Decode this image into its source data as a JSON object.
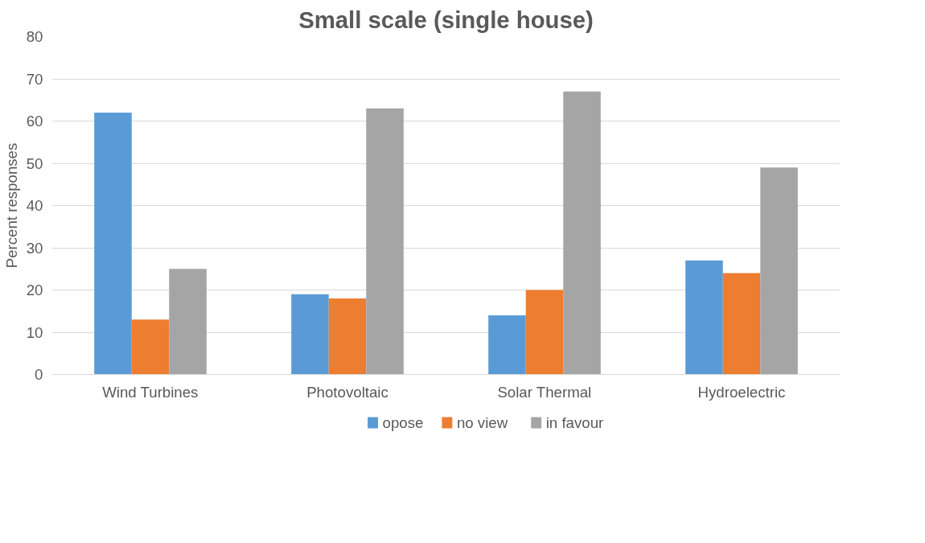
{
  "chart_data": {
    "type": "bar",
    "title": "Small scale (single house)",
    "ylabel": "Percent responses",
    "categories": [
      "Wind Turbines",
      "Photovoltaic",
      "Solar Thermal",
      "Hydroelectric"
    ],
    "series": [
      {
        "name": "opose",
        "color": "#5b9bd5",
        "values": [
          62,
          19,
          14,
          27
        ]
      },
      {
        "name": "no view",
        "color": "#ed7d31",
        "values": [
          13,
          18,
          20,
          24
        ]
      },
      {
        "name": "in favour",
        "color": "#a5a5a5",
        "values": [
          25,
          63,
          67,
          49
        ]
      }
    ],
    "ylim": [
      0,
      80
    ],
    "yticks": [
      0,
      10,
      20,
      30,
      40,
      50,
      60,
      70,
      80
    ],
    "grid": "y",
    "legend": "bottom"
  }
}
